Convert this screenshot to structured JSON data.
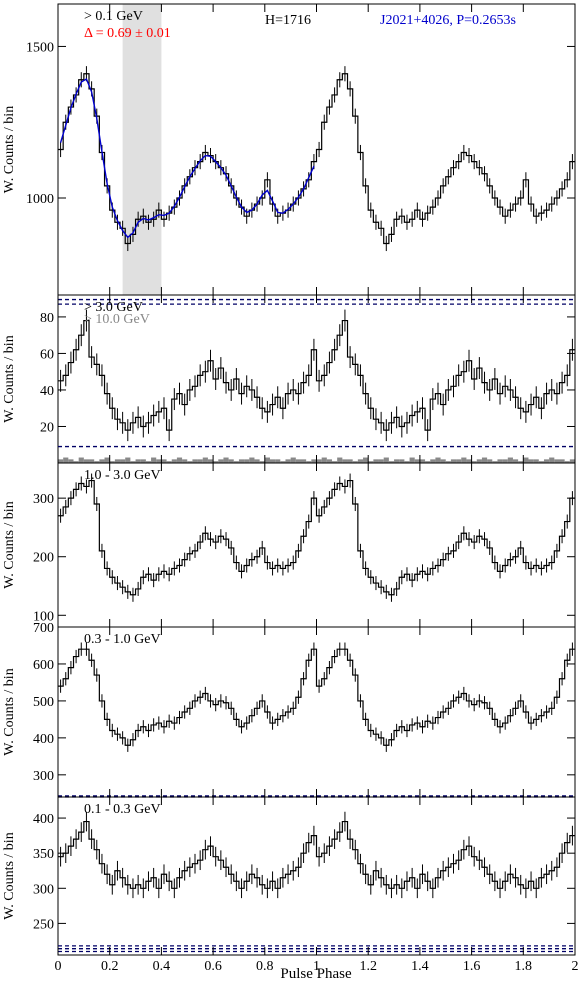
{
  "figure": {
    "xlabel": "Pulse Phase",
    "xlim": [
      0,
      2
    ],
    "xticks": [
      "0",
      "0.2",
      "0.4",
      "0.6",
      "0.8",
      "1",
      "1.2",
      "1.4",
      "1.6",
      "1.8",
      "2"
    ]
  },
  "chart_data": [
    {
      "type": "line",
      "panel": "top",
      "title": "",
      "energy_label": "> 0.1 GeV",
      "delta_label": "Δ = 0.69 ± 0.01",
      "h_label": "H=1716",
      "source_label": "J2021+4026, P=0.2653s",
      "ylabel": "W. Counts / bin",
      "ylim": [
        680,
        1640
      ],
      "yticks": [
        1000,
        1500
      ],
      "ytick_labels": [
        "1000",
        "1500"
      ],
      "shaded_region": [
        0.25,
        0.4
      ],
      "background_level": [
        665,
        650
      ],
      "x": [
        0.0,
        0.02,
        0.04,
        0.06,
        0.08,
        0.1,
        0.12,
        0.14,
        0.16,
        0.18,
        0.2,
        0.22,
        0.24,
        0.26,
        0.28,
        0.3,
        0.32,
        0.34,
        0.36,
        0.38,
        0.4,
        0.42,
        0.44,
        0.46,
        0.48,
        0.5,
        0.52,
        0.54,
        0.56,
        0.58,
        0.6,
        0.62,
        0.64,
        0.66,
        0.68,
        0.7,
        0.72,
        0.74,
        0.76,
        0.78,
        0.8,
        0.82,
        0.84,
        0.86,
        0.88,
        0.9,
        0.92,
        0.94,
        0.96,
        0.98
      ],
      "values": [
        1160,
        1250,
        1300,
        1340,
        1390,
        1410,
        1360,
        1270,
        1150,
        1040,
        960,
        920,
        900,
        850,
        880,
        930,
        940,
        920,
        930,
        960,
        930,
        950,
        970,
        1000,
        1040,
        1070,
        1100,
        1120,
        1150,
        1140,
        1120,
        1100,
        1080,
        1040,
        1000,
        970,
        940,
        960,
        980,
        1000,
        1060,
        980,
        940,
        950,
        960,
        980,
        1000,
        1030,
        1060,
        1120
      ],
      "error": 25,
      "fit_label": "",
      "fit_color": "#0000cc",
      "line_color": "#000000",
      "label_colors": {
        "delta": "#ff0000",
        "source": "#0000cc"
      }
    },
    {
      "type": "line",
      "panel": "second",
      "energy_label": "> 3.0 GeV",
      "energy_label_2": "> 10.0 GeV",
      "ylabel": "W. Counts / bin",
      "ylim": [
        0,
        92
      ],
      "yticks": [
        20,
        40,
        60,
        80
      ],
      "ytick_labels": [
        "20",
        "40",
        "60",
        "80"
      ],
      "background_level": [
        9
      ],
      "x": [
        0.0,
        0.02,
        0.04,
        0.06,
        0.08,
        0.1,
        0.12,
        0.14,
        0.16,
        0.18,
        0.2,
        0.22,
        0.24,
        0.26,
        0.28,
        0.3,
        0.32,
        0.34,
        0.36,
        0.38,
        0.4,
        0.42,
        0.44,
        0.46,
        0.48,
        0.5,
        0.52,
        0.54,
        0.56,
        0.58,
        0.6,
        0.62,
        0.64,
        0.66,
        0.68,
        0.7,
        0.72,
        0.74,
        0.76,
        0.78,
        0.8,
        0.82,
        0.84,
        0.86,
        0.88,
        0.9,
        0.92,
        0.94,
        0.96,
        0.98
      ],
      "values": [
        45,
        48,
        55,
        62,
        70,
        78,
        58,
        54,
        48,
        38,
        30,
        24,
        22,
        18,
        22,
        25,
        20,
        22,
        26,
        28,
        30,
        18,
        35,
        38,
        32,
        40,
        42,
        48,
        50,
        56,
        46,
        52,
        44,
        40,
        46,
        38,
        42,
        40,
        36,
        30,
        28,
        32,
        36,
        30,
        38,
        40,
        38,
        44,
        48,
        62
      ],
      "error": 6,
      "secondary_values": [
        2,
        3,
        2,
        1,
        3,
        2,
        2,
        1,
        2,
        3,
        1,
        2,
        2,
        3,
        1,
        2,
        2,
        1,
        3,
        2,
        2,
        1,
        2,
        3,
        2,
        1,
        2,
        2,
        3,
        2,
        1,
        2,
        3,
        2,
        1,
        2,
        2,
        3,
        2,
        1,
        3,
        2,
        2,
        1,
        2,
        3,
        2,
        2,
        1,
        2
      ],
      "line_color": "#000000",
      "secondary_color": "#888888"
    },
    {
      "type": "line",
      "panel": "third",
      "energy_label": "1.0 - 3.0 GeV",
      "ylabel": "W. Counts / bin",
      "ylim": [
        80,
        360
      ],
      "yticks": [
        100,
        200,
        300
      ],
      "ytick_labels": [
        "100",
        "200",
        "300"
      ],
      "background_level": [],
      "x": [
        0.0,
        0.02,
        0.04,
        0.06,
        0.08,
        0.1,
        0.12,
        0.14,
        0.16,
        0.18,
        0.2,
        0.22,
        0.24,
        0.26,
        0.28,
        0.3,
        0.32,
        0.34,
        0.36,
        0.38,
        0.4,
        0.42,
        0.44,
        0.46,
        0.48,
        0.5,
        0.52,
        0.54,
        0.56,
        0.58,
        0.6,
        0.62,
        0.64,
        0.66,
        0.68,
        0.7,
        0.72,
        0.74,
        0.76,
        0.78,
        0.8,
        0.82,
        0.84,
        0.86,
        0.88,
        0.9,
        0.92,
        0.94,
        0.96,
        0.98
      ],
      "values": [
        270,
        285,
        300,
        315,
        325,
        320,
        330,
        290,
        210,
        180,
        165,
        155,
        148,
        140,
        135,
        145,
        165,
        170,
        160,
        170,
        175,
        170,
        180,
        185,
        195,
        205,
        210,
        225,
        240,
        230,
        225,
        235,
        230,
        215,
        190,
        175,
        185,
        195,
        200,
        215,
        190,
        180,
        185,
        180,
        185,
        190,
        210,
        235,
        260,
        300
      ],
      "error": 12,
      "line_color": "#000000"
    },
    {
      "type": "line",
      "panel": "fourth",
      "energy_label": "0.3 - 1.0 GeV",
      "ylabel": "W. Counts / bin",
      "ylim": [
        240,
        700
      ],
      "yticks": [
        300,
        400,
        500,
        600,
        700
      ],
      "ytick_labels": [
        "300",
        "400",
        "500",
        "600",
        "700"
      ],
      "background_level": [
        243,
        240
      ],
      "x": [
        0.0,
        0.02,
        0.04,
        0.06,
        0.08,
        0.1,
        0.12,
        0.14,
        0.16,
        0.18,
        0.2,
        0.22,
        0.24,
        0.26,
        0.28,
        0.3,
        0.32,
        0.34,
        0.36,
        0.38,
        0.4,
        0.42,
        0.44,
        0.46,
        0.48,
        0.5,
        0.52,
        0.54,
        0.56,
        0.58,
        0.6,
        0.62,
        0.64,
        0.66,
        0.68,
        0.7,
        0.72,
        0.74,
        0.76,
        0.78,
        0.8,
        0.82,
        0.84,
        0.86,
        0.88,
        0.9,
        0.92,
        0.94,
        0.96,
        0.98
      ],
      "values": [
        540,
        560,
        590,
        620,
        640,
        640,
        610,
        570,
        500,
        450,
        420,
        410,
        400,
        380,
        395,
        420,
        430,
        420,
        435,
        440,
        430,
        445,
        440,
        455,
        470,
        480,
        500,
        510,
        520,
        500,
        490,
        500,
        495,
        480,
        450,
        430,
        440,
        460,
        480,
        500,
        470,
        440,
        450,
        460,
        470,
        480,
        510,
        560,
        610,
        640
      ],
      "error": 18,
      "line_color": "#000000"
    },
    {
      "type": "line",
      "panel": "bottom",
      "energy_label": "0.1 - 0.3 GeV",
      "ylabel": "W. Counts / bin",
      "ylim": [
        205,
        430
      ],
      "yticks": [
        250,
        300,
        350,
        400
      ],
      "ytick_labels": [
        "250",
        "300",
        "350",
        "400"
      ],
      "background_level": [
        218,
        214,
        210
      ],
      "x": [
        0.0,
        0.02,
        0.04,
        0.06,
        0.08,
        0.1,
        0.12,
        0.14,
        0.16,
        0.18,
        0.2,
        0.22,
        0.24,
        0.26,
        0.28,
        0.3,
        0.32,
        0.34,
        0.36,
        0.38,
        0.4,
        0.42,
        0.44,
        0.46,
        0.48,
        0.5,
        0.52,
        0.54,
        0.56,
        0.58,
        0.6,
        0.62,
        0.64,
        0.66,
        0.68,
        0.7,
        0.72,
        0.74,
        0.76,
        0.78,
        0.8,
        0.82,
        0.84,
        0.86,
        0.88,
        0.9,
        0.92,
        0.94,
        0.96,
        0.98
      ],
      "values": [
        345,
        350,
        360,
        370,
        380,
        395,
        370,
        355,
        335,
        320,
        305,
        325,
        315,
        305,
        300,
        305,
        300,
        310,
        315,
        300,
        320,
        310,
        300,
        315,
        325,
        330,
        335,
        340,
        355,
        360,
        345,
        340,
        330,
        320,
        310,
        300,
        310,
        320,
        315,
        305,
        300,
        310,
        300,
        315,
        320,
        325,
        330,
        350,
        365,
        375
      ],
      "error": 14,
      "line_color": "#000000"
    }
  ]
}
